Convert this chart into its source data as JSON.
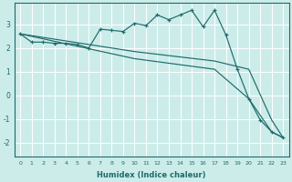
{
  "xlabel": "Humidex (Indice chaleur)",
  "ylabel": "",
  "bg_color": "#ccecea",
  "line_color": "#1e6b6b",
  "grid_color": "#ffffff",
  "xlim": [
    -0.5,
    23.5
  ],
  "ylim": [
    -2.6,
    3.9
  ],
  "xticks": [
    0,
    1,
    2,
    3,
    4,
    5,
    6,
    7,
    8,
    9,
    10,
    11,
    12,
    13,
    14,
    15,
    16,
    17,
    18,
    19,
    20,
    21,
    22,
    23
  ],
  "yticks": [
    -2,
    -1,
    0,
    1,
    2,
    3
  ],
  "series1_x": [
    0,
    1,
    2,
    3,
    4,
    5,
    6,
    7,
    8,
    9,
    10,
    11,
    12,
    13,
    14,
    15,
    16,
    17,
    18,
    19,
    20,
    21,
    22,
    23
  ],
  "series1_y": [
    2.6,
    2.25,
    2.25,
    2.2,
    2.2,
    2.15,
    2.0,
    2.8,
    2.75,
    2.7,
    3.05,
    2.95,
    3.4,
    3.2,
    3.4,
    3.6,
    2.9,
    3.6,
    2.55,
    1.1,
    -0.15,
    -1.05,
    -1.55,
    -1.8
  ],
  "series2_x": [
    0,
    10,
    17,
    20,
    22,
    23
  ],
  "series2_y": [
    2.6,
    1.85,
    1.45,
    1.1,
    -1.05,
    -1.8
  ],
  "series3_x": [
    0,
    10,
    17,
    20,
    22,
    23
  ],
  "series3_y": [
    2.6,
    1.55,
    1.1,
    -0.15,
    -1.55,
    -1.8
  ]
}
